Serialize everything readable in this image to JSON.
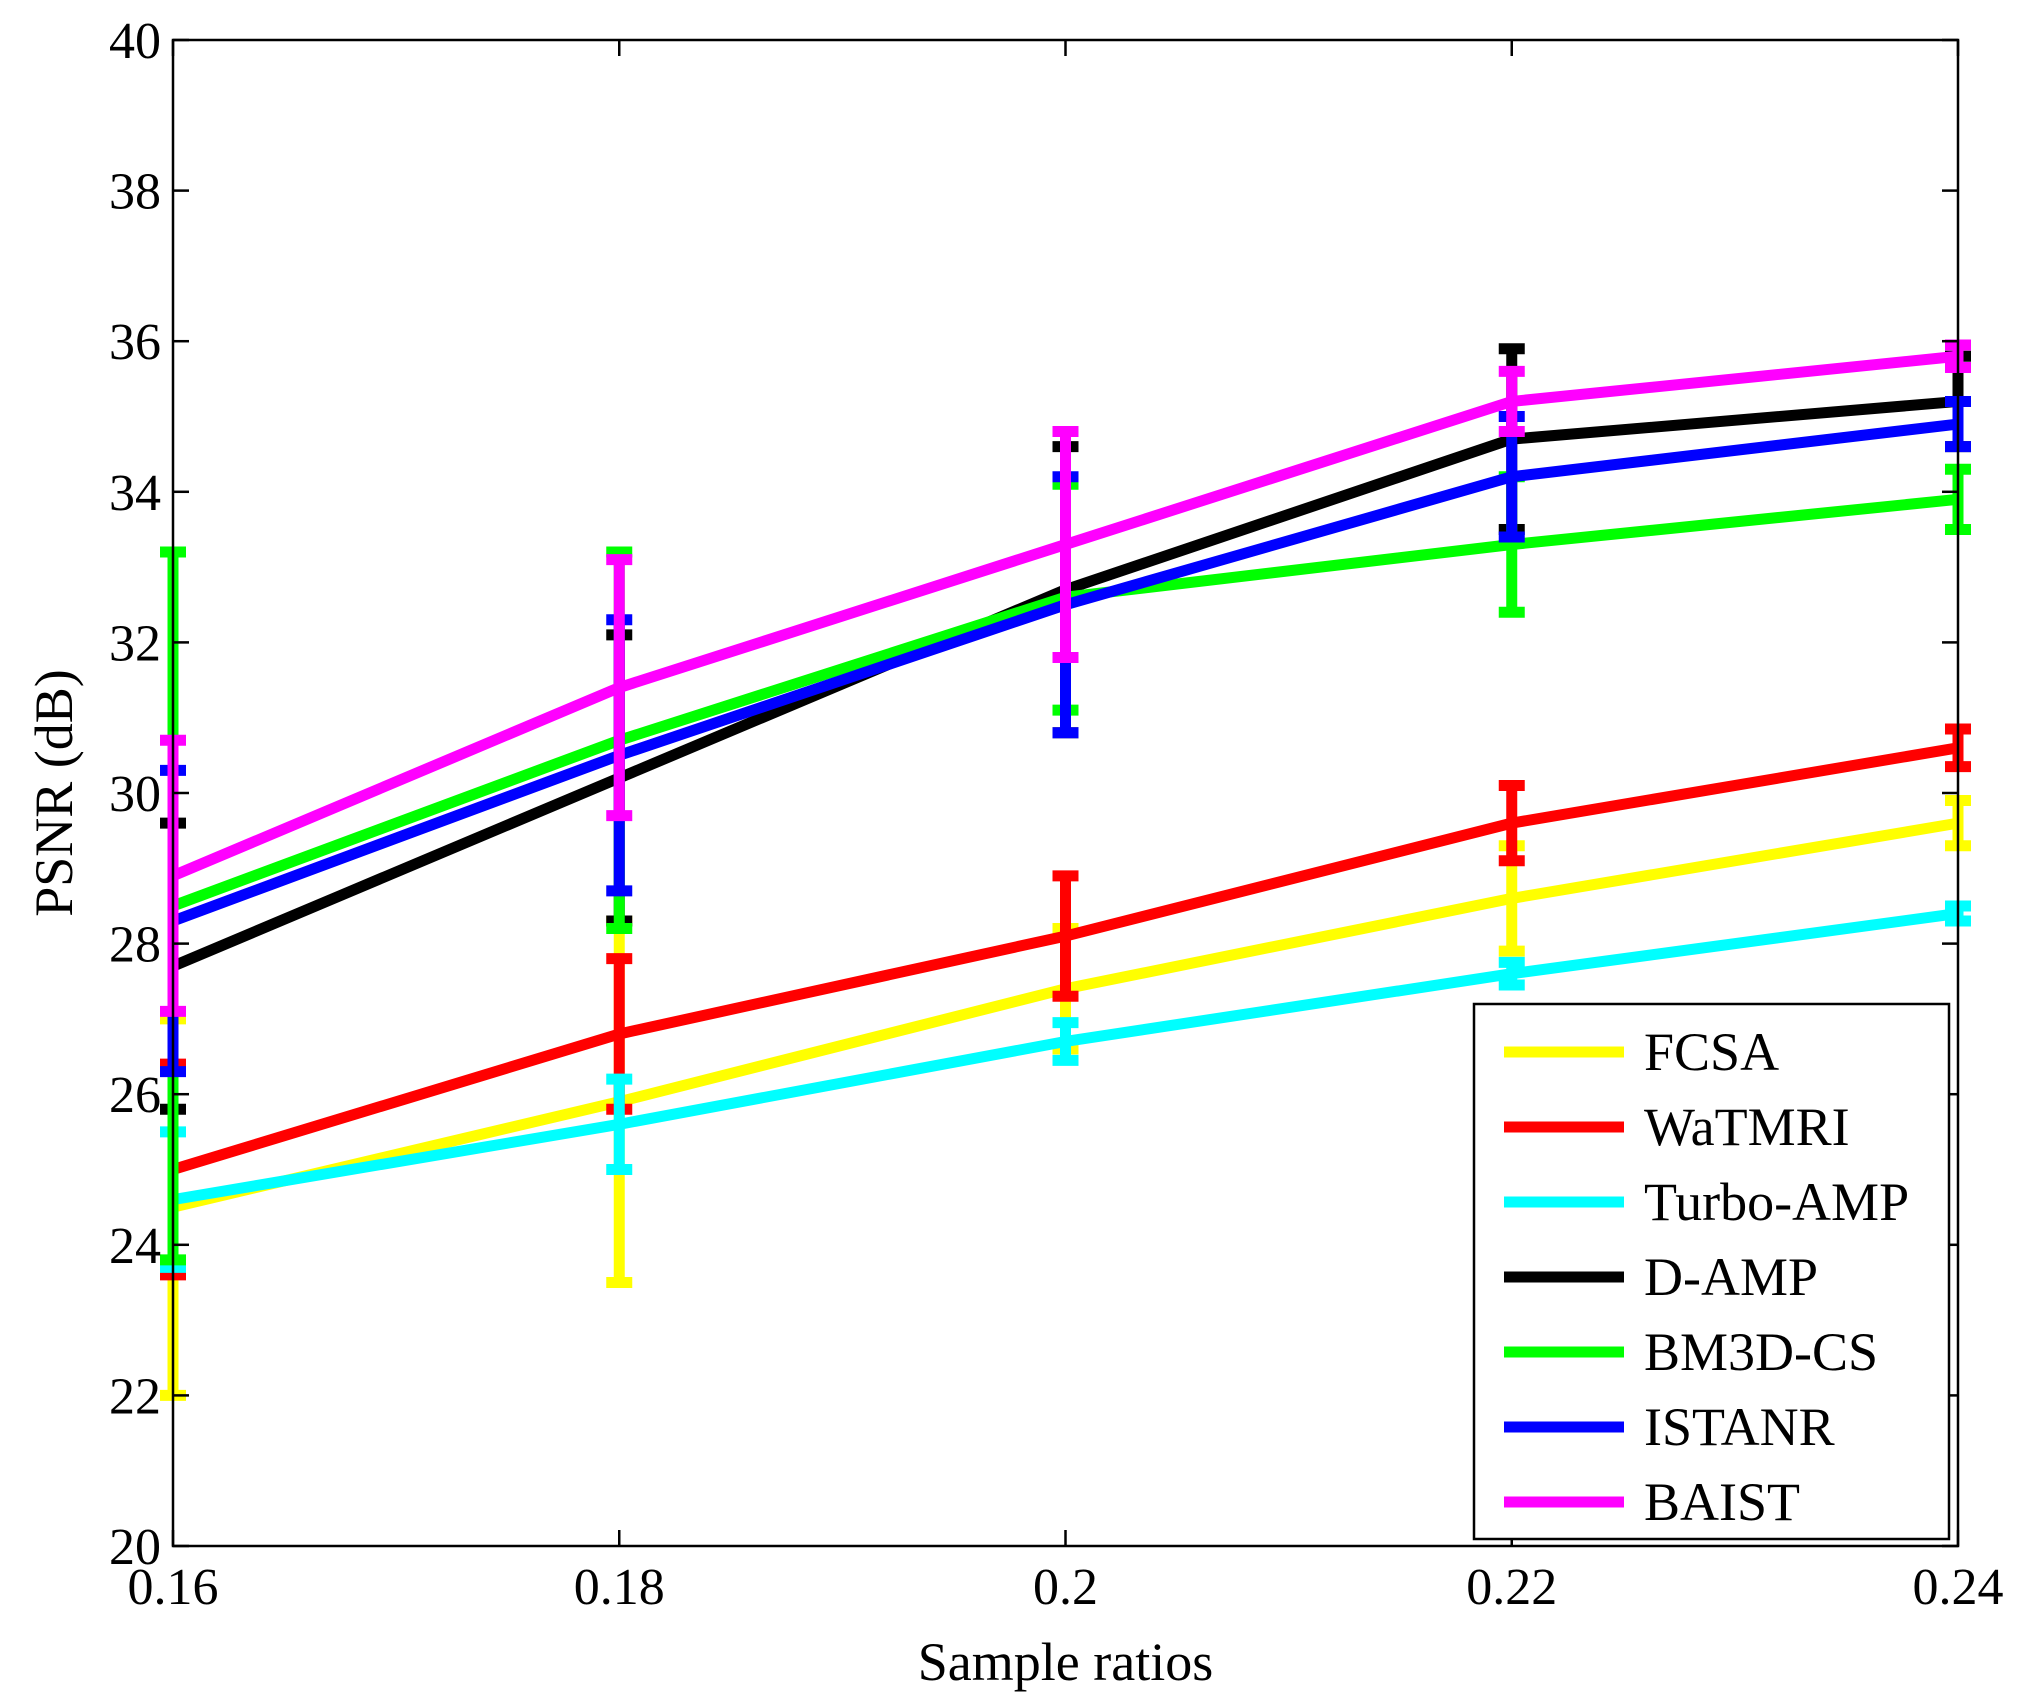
{
  "chart_data": {
    "type": "line",
    "title": "",
    "xlabel": "Sample ratios",
    "ylabel": "PSNR (dB)",
    "xlim": [
      0.16,
      0.24
    ],
    "ylim": [
      20,
      40
    ],
    "x": [
      0.16,
      0.18,
      0.2,
      0.22,
      0.24
    ],
    "x_tick_labels": [
      "0.16",
      "0.18",
      "0.2",
      "0.22",
      "0.24"
    ],
    "y_ticks": [
      20,
      22,
      24,
      26,
      28,
      30,
      32,
      34,
      36,
      38,
      40
    ],
    "y_tick_labels": [
      "20",
      "22",
      "24",
      "26",
      "28",
      "30",
      "32",
      "34",
      "36",
      "38",
      "40"
    ],
    "grid": false,
    "legend_position": "bottom-right",
    "series": [
      {
        "name": "FCSA",
        "color": "#ffff00",
        "values": [
          24.5,
          25.9,
          27.4,
          28.6,
          29.6
        ],
        "errors": [
          2.5,
          2.4,
          0.8,
          0.7,
          0.3
        ]
      },
      {
        "name": "WaTMRI",
        "color": "#ff0000",
        "values": [
          25.0,
          26.8,
          28.1,
          29.6,
          30.6
        ],
        "errors": [
          1.4,
          1.0,
          0.8,
          0.5,
          0.25
        ]
      },
      {
        "name": "Turbo-AMP",
        "color": "#00ffff",
        "values": [
          24.6,
          25.6,
          26.7,
          27.6,
          28.4
        ],
        "errors": [
          0.9,
          0.6,
          0.25,
          0.15,
          0.1
        ]
      },
      {
        "name": "D-AMP",
        "color": "#000000",
        "values": [
          27.7,
          30.2,
          32.7,
          34.7,
          35.2
        ],
        "errors": [
          1.9,
          1.9,
          1.9,
          1.2,
          0.6
        ]
      },
      {
        "name": "BM3D-CS",
        "color": "#00ff00",
        "values": [
          28.5,
          30.7,
          32.6,
          33.3,
          33.9
        ],
        "errors": [
          4.7,
          2.5,
          1.5,
          0.9,
          0.4
        ]
      },
      {
        "name": "ISTANR",
        "color": "#0000ff",
        "values": [
          28.3,
          30.5,
          32.5,
          34.2,
          34.9
        ],
        "errors": [
          2.0,
          1.8,
          1.7,
          0.8,
          0.3
        ]
      },
      {
        "name": "BAIST",
        "color": "#ff00ff",
        "values": [
          28.9,
          31.4,
          33.3,
          35.2,
          35.8
        ],
        "errors": [
          1.8,
          1.7,
          1.5,
          0.4,
          0.15
        ]
      }
    ]
  }
}
